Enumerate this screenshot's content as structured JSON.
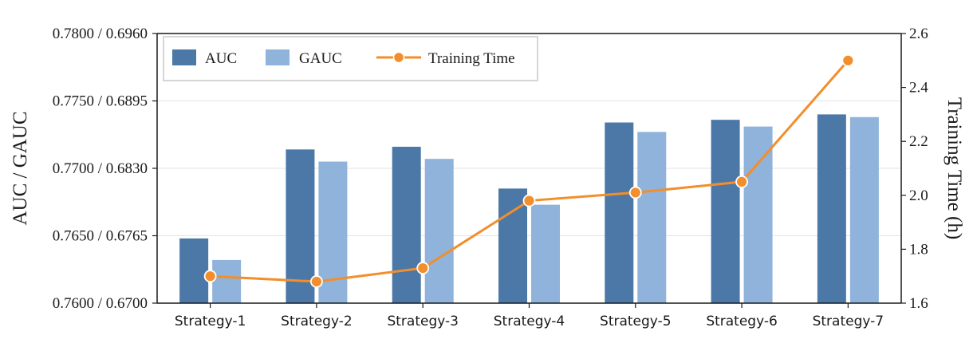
{
  "chart_data": {
    "type": "bar",
    "categories": [
      "Strategy-1",
      "Strategy-2",
      "Strategy-3",
      "Strategy-4",
      "Strategy-5",
      "Strategy-6",
      "Strategy-7"
    ],
    "series": [
      {
        "name": "AUC",
        "axis": "left",
        "kind": "bar",
        "color": "#4c78a8",
        "values": [
          0.7648,
          0.7714,
          0.7716,
          0.7685,
          0.7734,
          0.7736,
          0.774
        ]
      },
      {
        "name": "GAUC",
        "axis": "left",
        "kind": "bar",
        "color": "#8fb3db",
        "values_auc_scale": [
          0.7632,
          0.7705,
          0.7707,
          0.7673,
          0.7727,
          0.7731,
          0.7738
        ]
      },
      {
        "name": "Training Time",
        "axis": "right",
        "kind": "line",
        "color": "#f28e2b",
        "values": [
          1.7,
          1.68,
          1.73,
          1.98,
          2.01,
          2.05,
          2.5
        ]
      }
    ],
    "ylabel": "AUC / GAUC",
    "y2label": "Training Time (h)",
    "ylim": [
      0.76,
      0.78
    ],
    "gauc_ylim": [
      0.67,
      0.696
    ],
    "y2lim": [
      1.6,
      2.6
    ],
    "yticks": [
      "0.7600 / 0.6700",
      "0.7650 / 0.6765",
      "0.7700 / 0.6830",
      "0.7750 / 0.6895",
      "0.7800 / 0.6960"
    ],
    "yticks_values": [
      0.76,
      0.765,
      0.77,
      0.775,
      0.78
    ],
    "y2ticks": [
      "1.6",
      "1.8",
      "2.0",
      "2.2",
      "2.4",
      "2.6"
    ],
    "y2ticks_values": [
      1.6,
      1.8,
      2.0,
      2.2,
      2.4,
      2.6
    ],
    "grid": true,
    "legend_position": "top-left"
  }
}
